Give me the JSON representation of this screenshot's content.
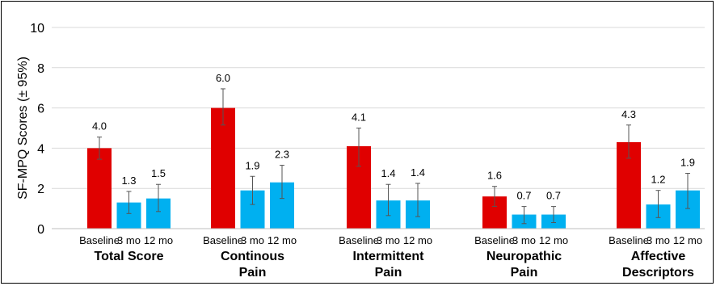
{
  "chart_data": {
    "type": "bar",
    "title": "",
    "ylabel": "SF-MPQ Scores (± 95%)",
    "xlabel": "",
    "ylim": [
      0,
      10
    ],
    "yticks": [
      0,
      2,
      4,
      6,
      8,
      10
    ],
    "grid": "horizontal",
    "colors": {
      "baseline": "#e00000",
      "followup": "#00b0f0"
    },
    "groups": [
      {
        "name": "Total Score",
        "name_lines": [
          "Total Score"
        ],
        "bars": [
          {
            "label": "Baseline",
            "value": 4.0,
            "value_label": "4.0",
            "ci": [
              3.45,
              4.55
            ]
          },
          {
            "label": "3 mo",
            "value": 1.3,
            "value_label": "1.3",
            "ci": [
              0.75,
              1.85
            ]
          },
          {
            "label": "12 mo",
            "value": 1.5,
            "value_label": "1.5",
            "ci": [
              0.85,
              2.2
            ]
          }
        ]
      },
      {
        "name": "Continous Pain",
        "name_lines": [
          "Continous",
          "Pain"
        ],
        "bars": [
          {
            "label": "Baseline",
            "value": 6.0,
            "value_label": "6.0",
            "ci": [
              5.15,
              6.95
            ]
          },
          {
            "label": "3 mo",
            "value": 1.9,
            "value_label": "1.9",
            "ci": [
              1.2,
              2.6
            ]
          },
          {
            "label": "12 mo",
            "value": 2.3,
            "value_label": "2.3",
            "ci": [
              1.5,
              3.15
            ]
          }
        ]
      },
      {
        "name": "Intermittent Pain",
        "name_lines": [
          "Intermittent",
          "Pain"
        ],
        "bars": [
          {
            "label": "Baseline",
            "value": 4.1,
            "value_label": "4.1",
            "ci": [
              3.1,
              5.0
            ]
          },
          {
            "label": "3 mo",
            "value": 1.4,
            "value_label": "1.4",
            "ci": [
              0.65,
              2.2
            ]
          },
          {
            "label": "12 mo",
            "value": 1.4,
            "value_label": "1.4",
            "ci": [
              0.6,
              2.25
            ]
          }
        ]
      },
      {
        "name": "Neuropathic Pain",
        "name_lines": [
          "Neuropathic",
          "Pain"
        ],
        "bars": [
          {
            "label": "Baseline",
            "value": 1.6,
            "value_label": "1.6",
            "ci": [
              1.1,
              2.1
            ]
          },
          {
            "label": "3 mo",
            "value": 0.7,
            "value_label": "0.7",
            "ci": [
              0.25,
              1.1
            ]
          },
          {
            "label": "12 mo",
            "value": 0.7,
            "value_label": "0.7",
            "ci": [
              0.3,
              1.1
            ]
          }
        ]
      },
      {
        "name": "Affective Descriptors",
        "name_lines": [
          "Affective",
          "Descriptors"
        ],
        "bars": [
          {
            "label": "Baseline",
            "value": 4.3,
            "value_label": "4.3",
            "ci": [
              3.5,
              5.15
            ]
          },
          {
            "label": "3 mo",
            "value": 1.2,
            "value_label": "1.2",
            "ci": [
              0.55,
              1.9
            ]
          },
          {
            "label": "12 mo",
            "value": 1.9,
            "value_label": "1.9",
            "ci": [
              1.0,
              2.75
            ]
          }
        ]
      }
    ]
  }
}
